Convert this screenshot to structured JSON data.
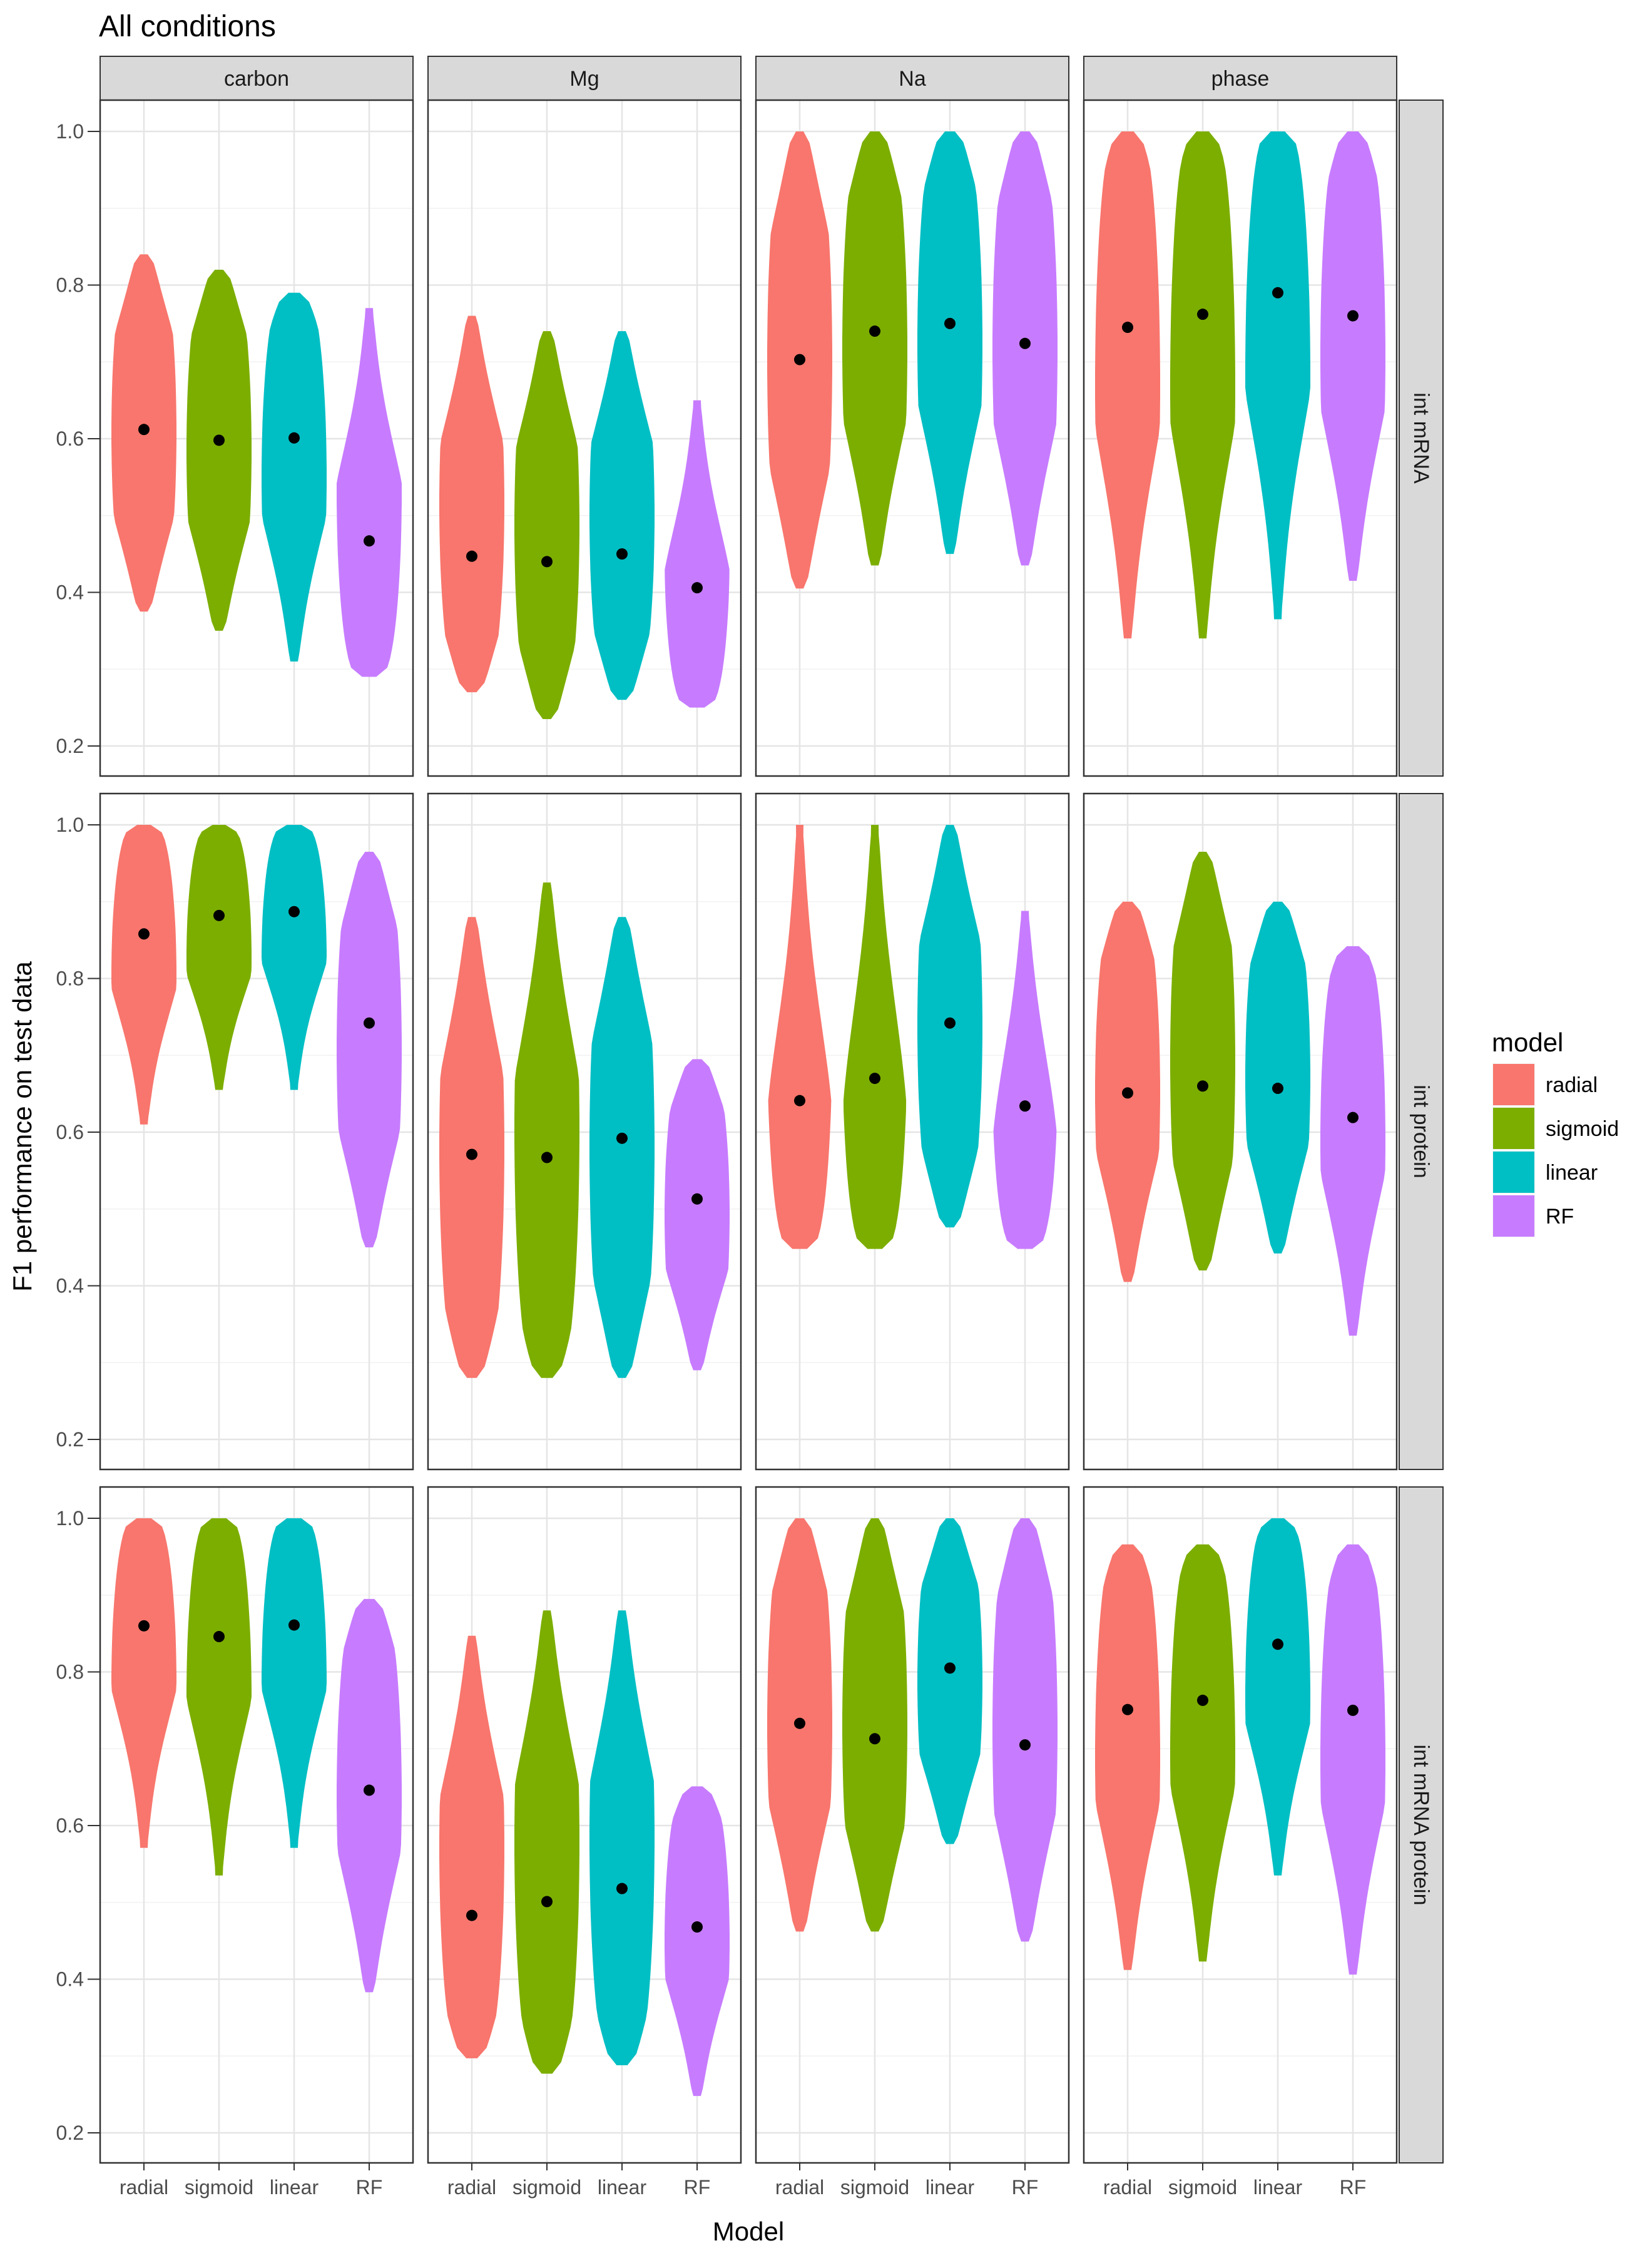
{
  "chart_data": {
    "type": "violin",
    "title": "All conditions",
    "xlabel": "Model",
    "ylabel": "F1 performance on test data",
    "ylim": [
      0.2,
      1.0
    ],
    "yticks": [
      "0.2",
      "0.4",
      "0.6",
      "0.8",
      "1.0"
    ],
    "categories": [
      "radial",
      "sigmoid",
      "linear",
      "RF"
    ],
    "column_facets": [
      "carbon",
      "Mg",
      "Na",
      "phase"
    ],
    "row_facets": [
      "int mRNA",
      "int protein",
      "int mRNA protein"
    ],
    "legend": {
      "title": "model",
      "position": "right",
      "entries": [
        {
          "label": "radial",
          "color": "#F8766D"
        },
        {
          "label": "sigmoid",
          "color": "#7CAE00"
        },
        {
          "label": "linear",
          "color": "#00BFC4"
        },
        {
          "label": "RF",
          "color": "#C77CFF"
        }
      ]
    },
    "grid": true,
    "marker": "mean shown as black point",
    "panels": [
      {
        "row": "int mRNA",
        "col": "carbon",
        "series": [
          {
            "model": "radial",
            "min": 0.375,
            "max": 0.84,
            "mean": 0.612,
            "mode": 0.62
          },
          {
            "model": "sigmoid",
            "min": 0.35,
            "max": 0.82,
            "mean": 0.598,
            "mode": 0.62
          },
          {
            "model": "linear",
            "min": 0.31,
            "max": 0.79,
            "mean": 0.601,
            "mode": 0.63
          },
          {
            "model": "RF",
            "min": 0.29,
            "max": 0.77,
            "mean": 0.467,
            "mode": 0.4
          }
        ]
      },
      {
        "row": "int mRNA",
        "col": "Mg",
        "series": [
          {
            "model": "radial",
            "min": 0.27,
            "max": 0.76,
            "mean": 0.447,
            "mode": 0.48
          },
          {
            "model": "sigmoid",
            "min": 0.235,
            "max": 0.74,
            "mean": 0.44,
            "mode": 0.47
          },
          {
            "model": "linear",
            "min": 0.26,
            "max": 0.74,
            "mean": 0.45,
            "mode": 0.48
          },
          {
            "model": "RF",
            "min": 0.25,
            "max": 0.65,
            "mean": 0.406,
            "mode": 0.3
          }
        ]
      },
      {
        "row": "int mRNA",
        "col": "Na",
        "series": [
          {
            "model": "radial",
            "min": 0.405,
            "max": 1.0,
            "mean": 0.703,
            "mode": 0.72
          },
          {
            "model": "sigmoid",
            "min": 0.435,
            "max": 1.0,
            "mean": 0.74,
            "mode": 0.78
          },
          {
            "model": "linear",
            "min": 0.45,
            "max": 1.0,
            "mean": 0.75,
            "mode": 0.8
          },
          {
            "model": "RF",
            "min": 0.435,
            "max": 1.0,
            "mean": 0.724,
            "mode": 0.78
          }
        ]
      },
      {
        "row": "int mRNA",
        "col": "phase",
        "series": [
          {
            "model": "radial",
            "min": 0.34,
            "max": 1.0,
            "mean": 0.745,
            "mode": 0.8
          },
          {
            "model": "sigmoid",
            "min": 0.34,
            "max": 1.0,
            "mean": 0.762,
            "mode": 0.8
          },
          {
            "model": "linear",
            "min": 0.365,
            "max": 1.0,
            "mean": 0.79,
            "mode": 0.84
          },
          {
            "model": "RF",
            "min": 0.415,
            "max": 1.0,
            "mean": 0.76,
            "mode": 0.8
          }
        ]
      },
      {
        "row": "int protein",
        "col": "carbon",
        "series": [
          {
            "model": "radial",
            "min": 0.61,
            "max": 1.0,
            "mean": 0.858,
            "mode": 0.9
          },
          {
            "model": "sigmoid",
            "min": 0.655,
            "max": 1.0,
            "mean": 0.882,
            "mode": 0.9
          },
          {
            "model": "linear",
            "min": 0.655,
            "max": 1.0,
            "mean": 0.887,
            "mode": 0.92
          },
          {
            "model": "RF",
            "min": 0.45,
            "max": 0.965,
            "mean": 0.742,
            "mode": 0.73
          }
        ]
      },
      {
        "row": "int protein",
        "col": "Mg",
        "series": [
          {
            "model": "radial",
            "min": 0.28,
            "max": 0.88,
            "mean": 0.571,
            "mode": 0.5
          },
          {
            "model": "sigmoid",
            "min": 0.28,
            "max": 0.925,
            "mean": 0.567,
            "mode": 0.48
          },
          {
            "model": "linear",
            "min": 0.28,
            "max": 0.88,
            "mean": 0.592,
            "mode": 0.55
          },
          {
            "model": "RF",
            "min": 0.29,
            "max": 0.695,
            "mean": 0.513,
            "mode": 0.53
          }
        ]
      },
      {
        "row": "int protein",
        "col": "Na",
        "series": [
          {
            "model": "radial",
            "min": 0.448,
            "max": 1.0,
            "mean": 0.641,
            "mode": 0.46
          },
          {
            "model": "sigmoid",
            "min": 0.448,
            "max": 1.0,
            "mean": 0.67,
            "mode": 0.46
          },
          {
            "model": "linear",
            "min": 0.476,
            "max": 1.0,
            "mean": 0.742,
            "mode": 0.7
          },
          {
            "model": "RF",
            "min": 0.448,
            "max": 0.888,
            "mean": 0.634,
            "mode": 0.46
          }
        ]
      },
      {
        "row": "int protein",
        "col": "phase",
        "series": [
          {
            "model": "radial",
            "min": 0.405,
            "max": 0.9,
            "mean": 0.651,
            "mode": 0.72
          },
          {
            "model": "sigmoid",
            "min": 0.42,
            "max": 0.965,
            "mean": 0.66,
            "mode": 0.72
          },
          {
            "model": "linear",
            "min": 0.442,
            "max": 0.9,
            "mean": 0.657,
            "mode": 0.72
          },
          {
            "model": "RF",
            "min": 0.335,
            "max": 0.842,
            "mean": 0.619,
            "mode": 0.7
          }
        ]
      },
      {
        "row": "int mRNA protein",
        "col": "carbon",
        "series": [
          {
            "model": "radial",
            "min": 0.571,
            "max": 1.0,
            "mean": 0.86,
            "mode": 0.9
          },
          {
            "model": "sigmoid",
            "min": 0.535,
            "max": 1.0,
            "mean": 0.846,
            "mode": 0.9
          },
          {
            "model": "linear",
            "min": 0.571,
            "max": 1.0,
            "mean": 0.861,
            "mode": 0.9
          },
          {
            "model": "RF",
            "min": 0.383,
            "max": 0.895,
            "mean": 0.646,
            "mode": 0.72
          }
        ]
      },
      {
        "row": "int mRNA protein",
        "col": "Mg",
        "series": [
          {
            "model": "radial",
            "min": 0.297,
            "max": 0.847,
            "mean": 0.483,
            "mode": 0.5
          },
          {
            "model": "sigmoid",
            "min": 0.277,
            "max": 0.88,
            "mean": 0.501,
            "mode": 0.5
          },
          {
            "model": "linear",
            "min": 0.288,
            "max": 0.88,
            "mean": 0.518,
            "mode": 0.5
          },
          {
            "model": "RF",
            "min": 0.248,
            "max": 0.651,
            "mean": 0.468,
            "mode": 0.52
          }
        ]
      },
      {
        "row": "int mRNA protein",
        "col": "Na",
        "series": [
          {
            "model": "radial",
            "min": 0.462,
            "max": 1.0,
            "mean": 0.733,
            "mode": 0.78
          },
          {
            "model": "sigmoid",
            "min": 0.462,
            "max": 1.0,
            "mean": 0.713,
            "mode": 0.75
          },
          {
            "model": "linear",
            "min": 0.576,
            "max": 1.0,
            "mean": 0.805,
            "mode": 0.8
          },
          {
            "model": "RF",
            "min": 0.449,
            "max": 1.0,
            "mean": 0.705,
            "mode": 0.78
          }
        ]
      },
      {
        "row": "int mRNA protein",
        "col": "phase",
        "series": [
          {
            "model": "radial",
            "min": 0.412,
            "max": 0.966,
            "mean": 0.751,
            "mode": 0.78
          },
          {
            "model": "sigmoid",
            "min": 0.423,
            "max": 0.966,
            "mean": 0.763,
            "mode": 0.8
          },
          {
            "model": "linear",
            "min": 0.535,
            "max": 1.0,
            "mean": 0.836,
            "mode": 0.86
          },
          {
            "model": "RF",
            "min": 0.406,
            "max": 0.966,
            "mean": 0.75,
            "mode": 0.78
          }
        ]
      }
    ]
  }
}
